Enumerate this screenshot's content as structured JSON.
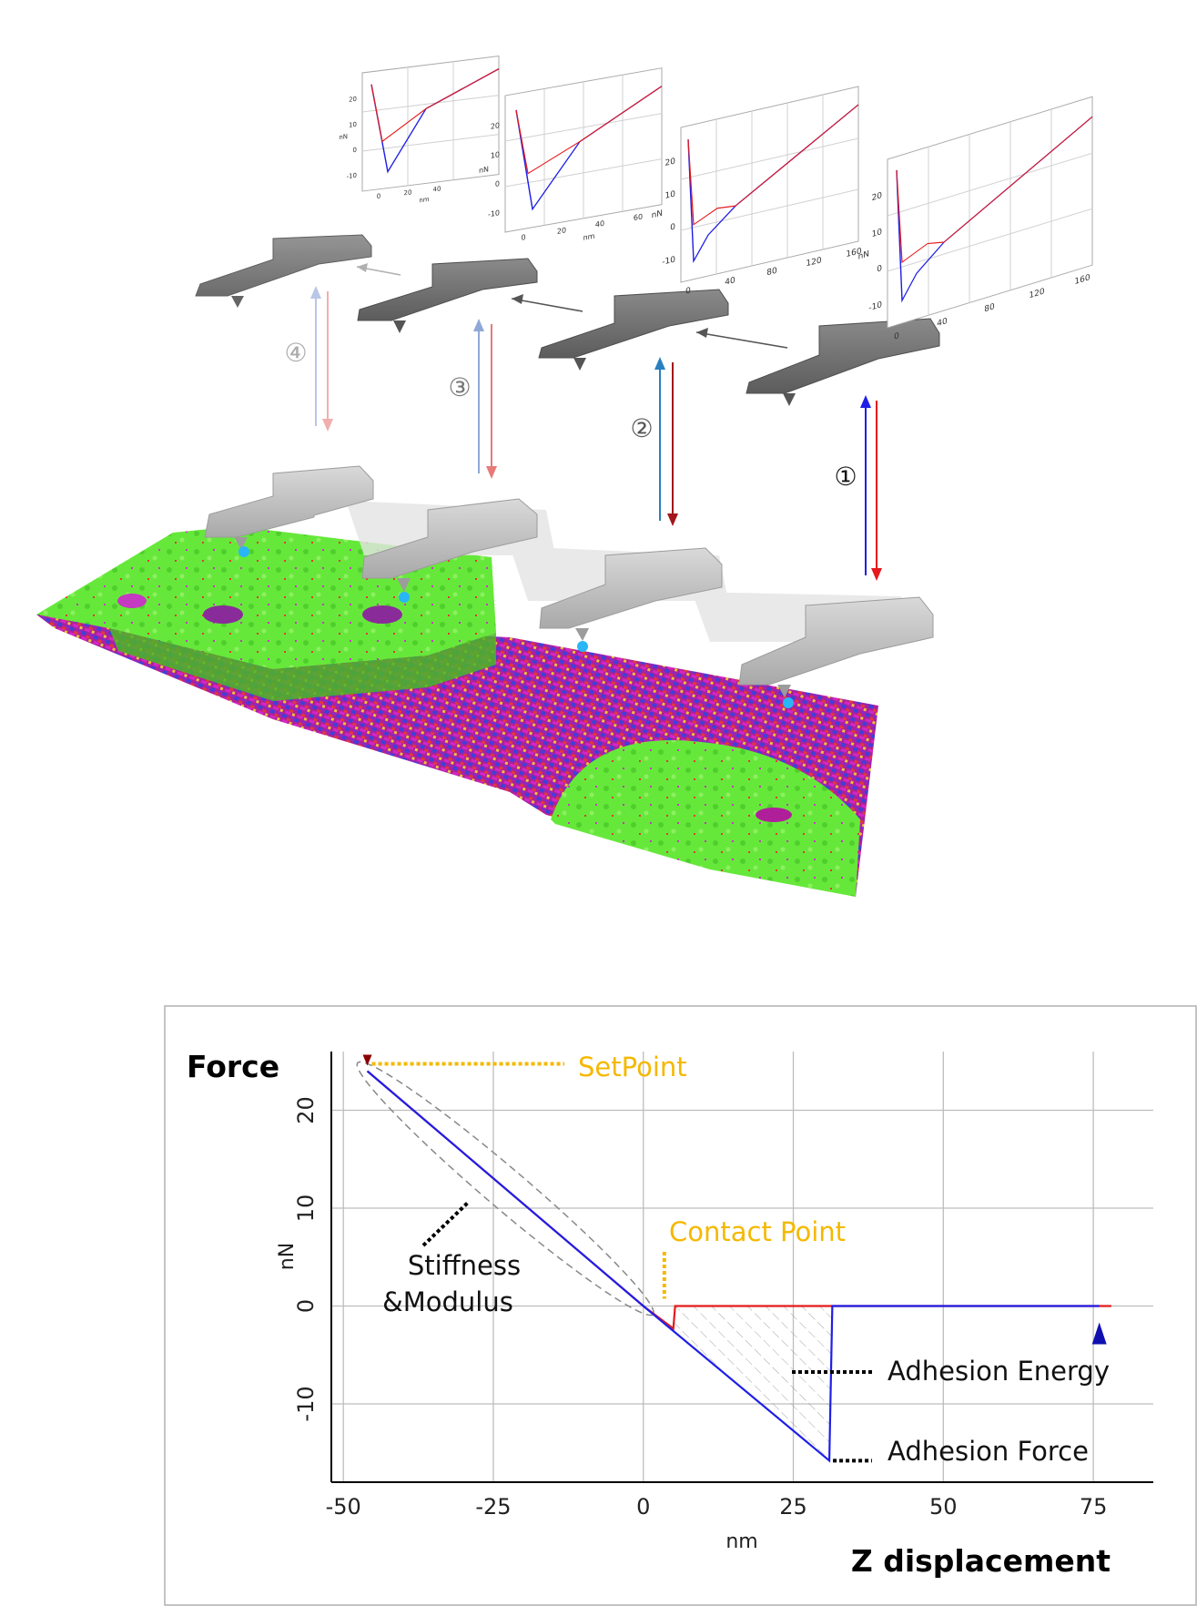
{
  "steps": [
    "①",
    "②",
    "③",
    "④"
  ],
  "mini_plots": [
    {
      "y_ticks": [
        "20",
        "10",
        "0",
        "-10"
      ],
      "y_unit": "nN",
      "x_ticks": [
        "0",
        "20",
        "40"
      ],
      "x_unit": "nm"
    },
    {
      "y_ticks": [
        "20",
        "10",
        "0",
        "-10"
      ],
      "y_unit": "nN",
      "x_ticks": [
        "0",
        "20",
        "40",
        "60"
      ],
      "x_unit": "nm"
    },
    {
      "y_ticks": [
        "20",
        "10",
        "0",
        "-10"
      ],
      "y_unit": "nN",
      "x_ticks": [
        "0",
        "40",
        "80",
        "120",
        "160"
      ],
      "x_unit": "nm"
    },
    {
      "y_ticks": [
        "20",
        "10",
        "0",
        "-10"
      ],
      "y_unit": "nN",
      "x_ticks": [
        "0",
        "40",
        "80",
        "120",
        "160"
      ],
      "x_unit": "nm"
    }
  ],
  "chart_data": {
    "type": "line",
    "xlabel": "nm",
    "ylabel": "nN",
    "x_title": "Z displacement",
    "y_title": "Force",
    "xlim": [
      -52,
      85
    ],
    "ylim": [
      -18,
      26
    ],
    "x_ticks": [
      -50,
      -25,
      0,
      25,
      50,
      75
    ],
    "y_ticks": [
      20,
      10,
      0,
      -10
    ],
    "x_tick_labels": [
      "-50",
      "-25",
      "0",
      "25",
      "50",
      "75"
    ],
    "y_tick_labels": [
      "20",
      "10",
      "0",
      "-10"
    ],
    "series": [
      {
        "color": "#e41a1c",
        "points": [
          [
            -46,
            24
          ],
          [
            0,
            0
          ],
          [
            5,
            -2.3
          ],
          [
            5.3,
            0
          ],
          [
            78,
            0
          ]
        ]
      },
      {
        "color": "#1f1fe6",
        "points": [
          [
            -46,
            24
          ],
          [
            0,
            0
          ],
          [
            31,
            -15.8
          ],
          [
            31.5,
            0
          ],
          [
            76,
            0
          ]
        ]
      }
    ],
    "annotations": {
      "setpoint": "SetPoint",
      "contact_point": "Contact Point",
      "stiffness": [
        "Stiffness",
        "&Modulus"
      ],
      "adhesion_energy": "Adhesion Energy",
      "adhesion_force": "Adhesion Force"
    },
    "colors": {
      "approach": "#e41a1c",
      "retract": "#1f1fe6",
      "highlight": "#f5b800",
      "grid": "#bdbdbd"
    }
  }
}
